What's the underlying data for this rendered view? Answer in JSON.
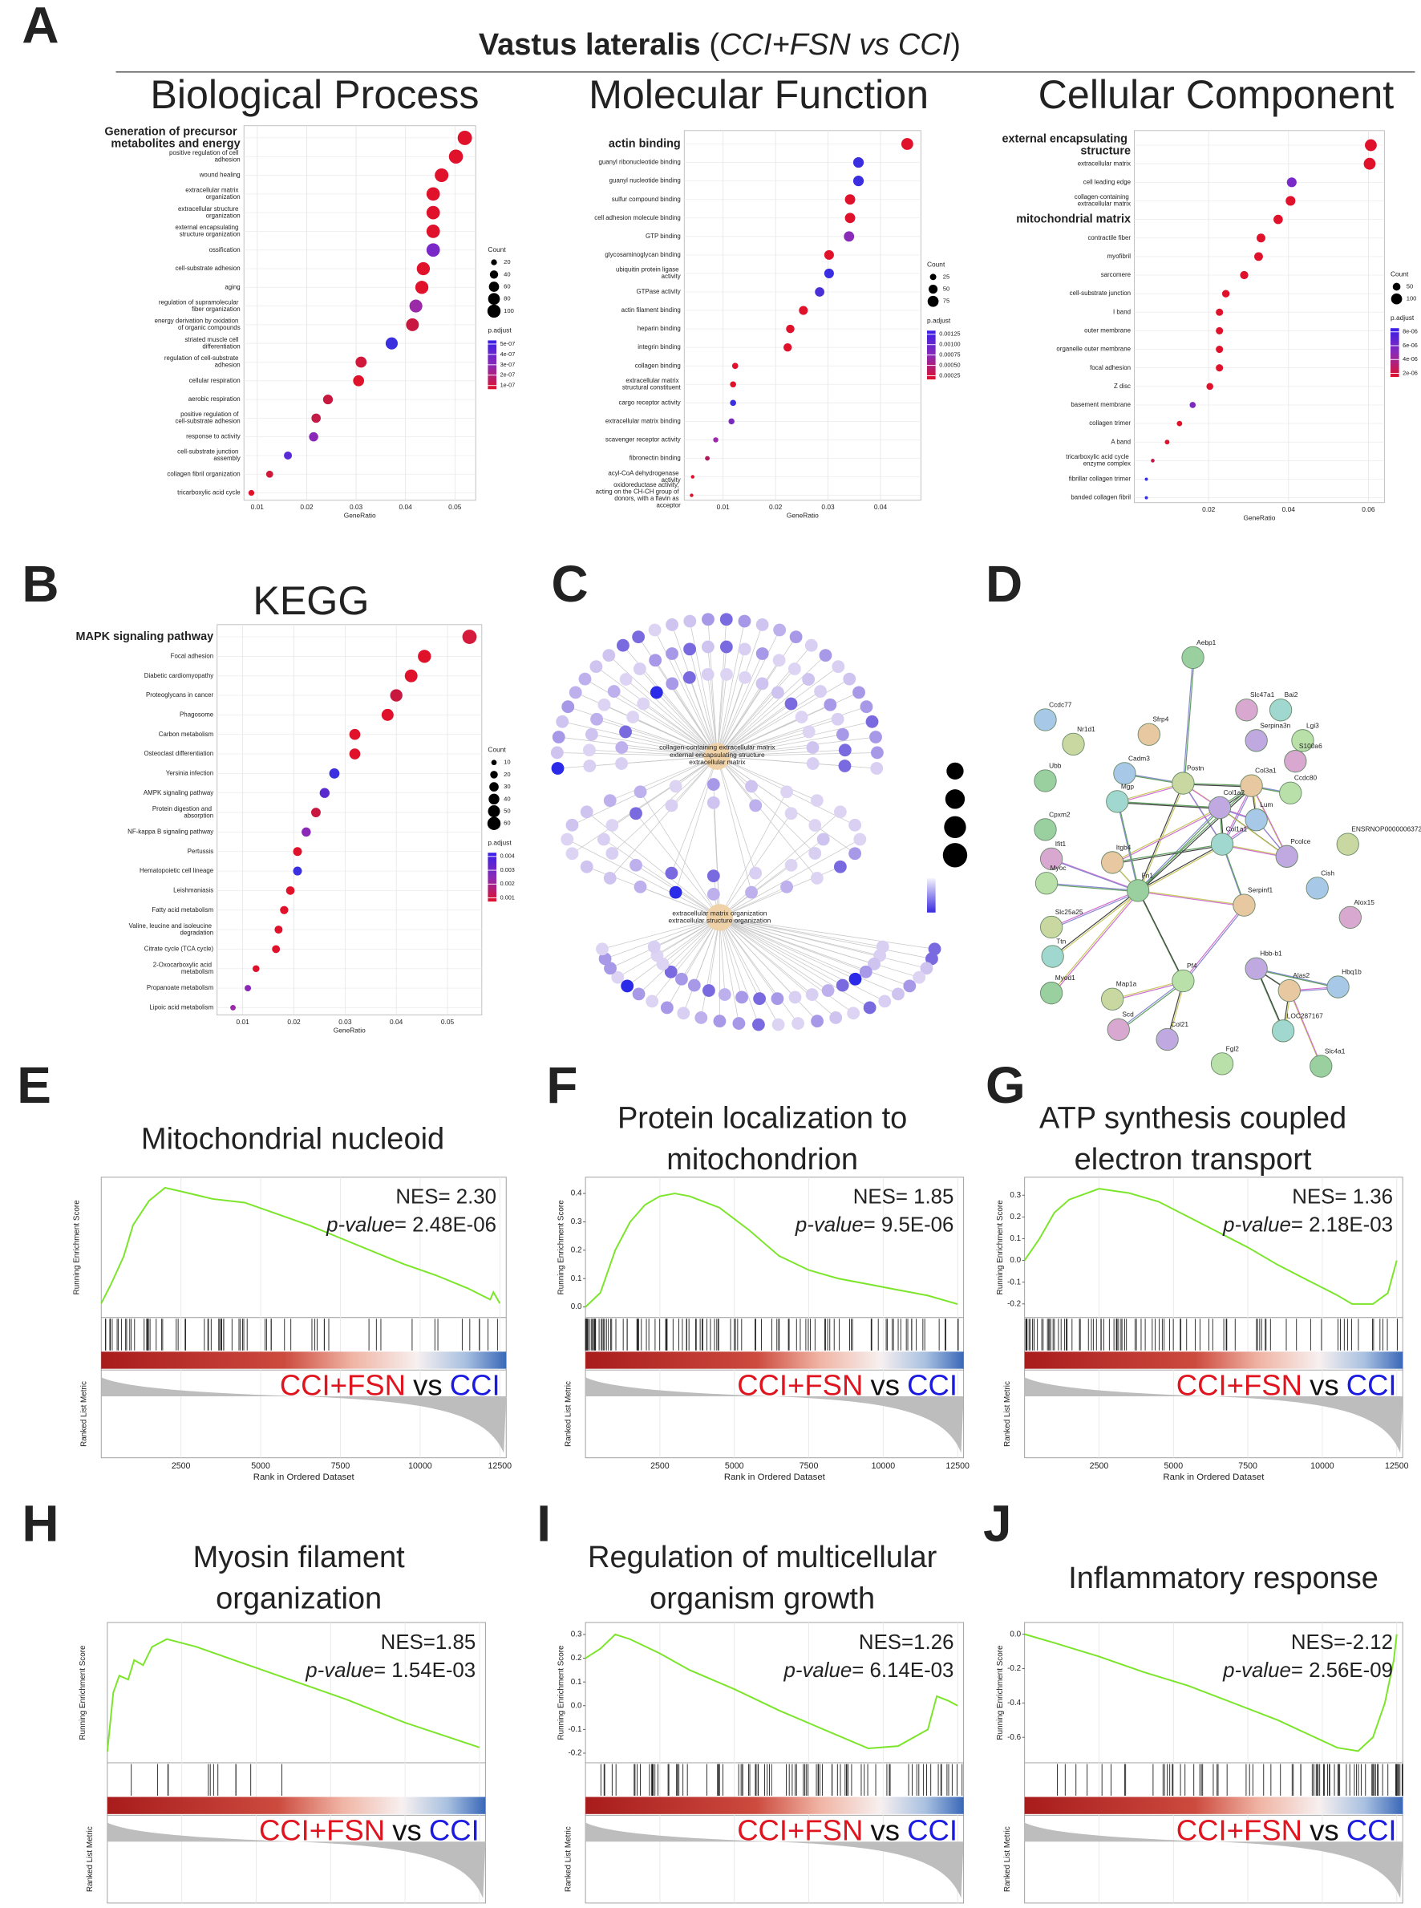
{
  "figure": {
    "title_bold": "Vastus lateralis",
    "title_open": "(",
    "title_italic": "CCI+FSN vs CCI",
    "title_close": ")"
  },
  "panel_letters": [
    "A",
    "B",
    "C",
    "D",
    "E",
    "F",
    "G",
    "H",
    "I",
    "J"
  ],
  "chart_data": [
    {
      "type": "dot",
      "title": "Biological Process",
      "xlabel": "GeneRatio",
      "categories": [
        "Generation of precursor metabolites and energy",
        "positive regulation of cell adhesion",
        "wound healing",
        "extracellular matrix organization",
        "extracellular structure organization",
        "external encapsulating structure organization",
        "ossification",
        "cell-substrate adhesion",
        "aging",
        "regulation of supramolecular fiber organization",
        "energy derivation by oxidation of organic compounds",
        "striated muscle cell differentiation",
        "regulation of cell-substrate adhesion",
        "cellular respiration",
        "aerobic respiration",
        "positive regulation of cell-substrate adhesion",
        "response to activity",
        "cell-substrate junction assembly",
        "collagen fibril organization",
        "tricarboxylic acid cycle"
      ],
      "values": [
        0.052,
        0.0502,
        0.0473,
        0.0456,
        0.0456,
        0.0456,
        0.0456,
        0.0436,
        0.0433,
        0.0421,
        0.0414,
        0.0372,
        0.031,
        0.0305,
        0.0243,
        0.0219,
        0.0214,
        0.0162,
        0.0125,
        0.0088
      ],
      "colors": [
        "#e0112b",
        "#e0112b",
        "#e0112b",
        "#e0112b",
        "#e0112b",
        "#e0112b",
        "#7a28c8",
        "#e0112b",
        "#e0112b",
        "#9a2aa8",
        "#c8183f",
        "#3a30e0",
        "#d0183a",
        "#e0112b",
        "#c8183f",
        "#c41a48",
        "#8a28b8",
        "#5a2ad8",
        "#d0183a",
        "#e0112b"
      ],
      "highlight": [
        0
      ],
      "xlim": [
        0.0073,
        0.0542
      ],
      "xticks": [
        0.01,
        0.02,
        0.03,
        0.04,
        0.05
      ],
      "size_legend": {
        "title": "Count",
        "values": [
          20,
          40,
          60,
          80,
          100
        ]
      },
      "color_legend": {
        "title": "p.adjust",
        "colors": [
          "#3a1fe8",
          "#8a2ab8",
          "#e0112b"
        ],
        "ticks": [
          {
            "value": 5e-07,
            "label": "5e-07"
          },
          {
            "value": 4e-07,
            "label": "4e-07"
          },
          {
            "value": 3e-07,
            "label": "3e-07"
          },
          {
            "value": 2e-07,
            "label": "2e-07"
          },
          {
            "value": 1e-07,
            "label": "1e-07"
          }
        ]
      }
    },
    {
      "type": "dot",
      "title": "Molecular Function",
      "xlabel": "GeneRatio",
      "categories": [
        "actin binding",
        "guanyl ribonucleotide binding",
        "guanyl nucleotide binding",
        "sulfur compound binding",
        "cell adhesion molecule binding",
        "GTP binding",
        "glycosaminoglycan binding",
        "ubiquitin protein ligase activity",
        "GTPase activity",
        "actin filament binding",
        "heparin binding",
        "integrin binding",
        "collagen binding",
        "extracellular matrix structural constituent",
        "cargo receptor activity",
        "extracellular matrix binding",
        "scavenger receptor activity",
        "fibronectin binding",
        "acyl-CoA dehydrogenase activity",
        "oxidoreductase activity, acting on the CH-CH group of donors, with a flavin as acceptor"
      ],
      "values": [
        0.0451,
        0.0358,
        0.0358,
        0.0342,
        0.0342,
        0.034,
        0.0302,
        0.0302,
        0.0284,
        0.0253,
        0.0228,
        0.0223,
        0.0123,
        0.0119,
        0.0119,
        0.0116,
        0.0086,
        0.007,
        0.0042,
        0.004
      ],
      "colors": [
        "#e0112b",
        "#3a2ee0",
        "#3a2ee0",
        "#e0112b",
        "#e0112b",
        "#8a2ab8",
        "#e0112b",
        "#3a2ee0",
        "#4a2ed8",
        "#e0112b",
        "#e0112b",
        "#e0112b",
        "#e0112b",
        "#e0112b",
        "#3a30e0",
        "#7a2ac0",
        "#9a2aa8",
        "#b01a58",
        "#e0112b",
        "#e0112b"
      ],
      "highlight": [
        0
      ],
      "xlim": [
        0.0026,
        0.0477
      ],
      "xticks": [
        0.01,
        0.02,
        0.03,
        0.04
      ],
      "size_legend": {
        "title": "Count",
        "values": [
          25,
          50,
          75
        ]
      },
      "color_legend": {
        "title": "p.adjust",
        "colors": [
          "#3a1fe8",
          "#8a2ab8",
          "#e0112b"
        ],
        "ticks": [
          0.00125,
          {
            "value": 0.001,
            "label": "0.00100"
          },
          0.00075,
          {
            "value": 0.0005,
            "label": "0.00050"
          },
          0.00025
        ]
      }
    },
    {
      "type": "dot",
      "title": "Cellular Component",
      "xlabel": "GeneRatio",
      "categories": [
        "external encapsulating structure",
        "extracellular matrix",
        "cell leading edge",
        "collagen-containing extracellular matrix",
        "mitochondrial matrix",
        "contractile fiber",
        "myofibril",
        "sarcomere",
        "cell-substrate junction",
        "I band",
        "outer membrane",
        "organelle outer membrane",
        "focal adhesion",
        "Z disc",
        "basement membrane",
        "collagen trimer",
        "A band",
        "tricarboxylic acid cycle enzyme complex",
        "fibrillar collagen trimer",
        "banded collagen fibril"
      ],
      "values": [
        0.0606,
        0.0603,
        0.0408,
        0.0405,
        0.0374,
        0.0331,
        0.0325,
        0.0289,
        0.0243,
        0.0227,
        0.0227,
        0.0227,
        0.0227,
        0.0203,
        0.016,
        0.0127,
        0.0096,
        0.006,
        0.0044,
        0.0044
      ],
      "colors": [
        "#e0112b",
        "#e0112b",
        "#7a2ac8",
        "#e0112b",
        "#e0112b",
        "#e0112b",
        "#e0112b",
        "#e0112b",
        "#e0112b",
        "#e0112b",
        "#e0112b",
        "#e0112b",
        "#e0112b",
        "#e0112b",
        "#7a2ac0",
        "#e0112b",
        "#e0112b",
        "#c0184a",
        "#3a30e0",
        "#3a30e0"
      ],
      "highlight": [
        0,
        4
      ],
      "xlim": [
        0.0014,
        0.064
      ],
      "xticks": [
        0.02,
        0.04,
        0.06
      ],
      "size_legend": {
        "title": "Count",
        "values": [
          50,
          100
        ]
      },
      "color_legend": {
        "title": "p.adjust",
        "colors": [
          "#3a1fe8",
          "#8a2ab8",
          "#e0112b"
        ],
        "ticks": [
          {
            "value": 8e-06,
            "label": "8e-06"
          },
          {
            "value": 6e-06,
            "label": "6e-06"
          },
          {
            "value": 4e-06,
            "label": "4e-06"
          },
          {
            "value": 2e-06,
            "label": "2e-06"
          }
        ]
      }
    },
    {
      "type": "dot",
      "title": "KEGG",
      "xlabel": "GeneRatio",
      "categories": [
        "MAPK signaling pathway",
        "Focal adhesion",
        "Diabetic cardiomyopathy",
        "Proteoglycans in cancer",
        "Phagosome",
        "Carbon metabolism",
        "Osteoclast differentiation",
        "Yersinia infection",
        "AMPK signaling pathway",
        "Protein digestion and absorption",
        "NF-kappa B signaling pathway",
        "Pertussis",
        "Hematopoietic cell lineage",
        "Leishmaniasis",
        "Fatty acid metabolism",
        "Valine, leucine and isoleucine degradation",
        "Citrate cycle (TCA cycle)",
        "2-Oxocarboxylic acid metabolism",
        "Propanoate metabolism",
        "Lipoic acid metabolism"
      ],
      "values": [
        0.0543,
        0.0455,
        0.0429,
        0.04,
        0.0383,
        0.0319,
        0.0319,
        0.0279,
        0.026,
        0.0243,
        0.0224,
        0.0207,
        0.0207,
        0.0193,
        0.0181,
        0.017,
        0.0165,
        0.0126,
        0.011,
        0.0081
      ],
      "colors": [
        "#d61a3c",
        "#e0112b",
        "#e0112b",
        "#c8183f",
        "#e0112b",
        "#e0112b",
        "#e0112b",
        "#3a30e0",
        "#5a2cd0",
        "#c8183f",
        "#8a28b8",
        "#e0112b",
        "#3a30e0",
        "#e0112b",
        "#e0112b",
        "#e0112b",
        "#e0112b",
        "#e0112b",
        "#8a28b8",
        "#9a2aa8"
      ],
      "highlight": [
        0
      ],
      "xlim": [
        0.005,
        0.0567
      ],
      "xticks": [
        0.01,
        0.02,
        0.03,
        0.04,
        0.05
      ],
      "size_legend": {
        "title": "Count",
        "values": [
          10,
          20,
          30,
          40,
          50,
          60
        ]
      },
      "color_legend": {
        "title": "p.adjust",
        "colors": [
          "#3a1fe8",
          "#8a2ab8",
          "#e0112b"
        ],
        "ticks": [
          0.004,
          0.003,
          0.002,
          0.001
        ]
      }
    },
    {
      "type": "gsea",
      "title_lines": [
        "Mitochondrial nucleoid"
      ],
      "nes_text": "NES= 2.30",
      "p_italic": "p-value",
      "p_text": "= 2.48E-06",
      "ylabel": "Running Enrichment Score",
      "metric_label": "Ranked List Metric",
      "xlabel": "Rank in Ordered Dataset",
      "group_a": "CCI+FSN",
      "vs": "vs",
      "group_b": "CCI",
      "color": "#7be52a",
      "x": [
        0,
        300,
        700,
        1000,
        1500,
        2000,
        2500,
        3500,
        4500,
        5500,
        6500,
        7500,
        8500,
        9500,
        10500,
        11500,
        12200,
        12300,
        12500
      ],
      "values": [
        0,
        0.1,
        0.25,
        0.42,
        0.55,
        0.62,
        0.6,
        0.56,
        0.54,
        0.48,
        0.42,
        0.35,
        0.28,
        0.21,
        0.15,
        0.08,
        0.02,
        0.06,
        0.0
      ],
      "xlim": [
        0,
        12700
      ],
      "xticks": [
        2500,
        5000,
        7500,
        10000,
        12500
      ],
      "ylim": [
        -0.05,
        0.65
      ]
    },
    {
      "type": "gsea",
      "title_lines": [
        "Protein localization to",
        "mitochondrion"
      ],
      "nes_text": "NES= 1.85",
      "p_italic": "p-value",
      "p_text": "= 9.5E-06",
      "ylabel": "Running Enrichment Score",
      "metric_label": "Ranked List Metric",
      "xlabel": "Rank in Ordered Dataset",
      "group_a": "CCI+FSN",
      "vs": "vs",
      "group_b": "CCI",
      "color": "#7be52a",
      "x": [
        0,
        500,
        1000,
        1500,
        2000,
        2500,
        3000,
        3500,
        4500,
        5500,
        6500,
        7500,
        8500,
        9500,
        10500,
        11500,
        12500
      ],
      "values": [
        0,
        0.05,
        0.2,
        0.3,
        0.36,
        0.39,
        0.4,
        0.39,
        0.35,
        0.27,
        0.18,
        0.13,
        0.1,
        0.08,
        0.06,
        0.04,
        0.01
      ],
      "xlim": [
        0,
        12700
      ],
      "xticks": [
        2500,
        5000,
        7500,
        10000,
        12500
      ],
      "ylim": [
        -0.02,
        0.44
      ],
      "yticks": [
        {
          "value": 0,
          "label": "0.0"
        },
        0.1,
        0.2,
        0.3,
        0.4
      ]
    },
    {
      "type": "gsea",
      "title_lines": [
        "ATP synthesis coupled",
        "electron transport"
      ],
      "nes_text": "NES= 1.36",
      "p_italic": "p-value",
      "p_text": "= 2.18E-03",
      "ylabel": "Running Enrichment Score",
      "metric_label": "Ranked List Metric",
      "xlabel": "Rank in Ordered Dataset",
      "group_a": "CCI+FSN",
      "vs": "vs",
      "group_b": "CCI",
      "color": "#7be52a",
      "x": [
        0,
        500,
        1000,
        1500,
        2500,
        3500,
        4500,
        5500,
        6500,
        7500,
        8500,
        9500,
        10500,
        11000,
        11700,
        12200,
        12500
      ],
      "values": [
        0,
        0.1,
        0.22,
        0.28,
        0.33,
        0.31,
        0.27,
        0.2,
        0.13,
        0.06,
        -0.02,
        -0.09,
        -0.16,
        -0.2,
        -0.2,
        -0.15,
        0.0
      ],
      "xlim": [
        0,
        12700
      ],
      "xticks": [
        2500,
        5000,
        7500,
        10000,
        12500
      ],
      "ylim": [
        -0.24,
        0.36
      ],
      "yticks": [
        -0.2,
        -0.1,
        {
          "value": 0,
          "label": "0.0"
        },
        0.1,
        0.2,
        0.3
      ]
    },
    {
      "type": "gsea",
      "title_lines": [
        "Myosin filament",
        "organization"
      ],
      "nes_text": "NES=1.85",
      "p_italic": "p-value",
      "p_text": "= 1.54E-03",
      "ylabel": "Running Enrichment Score",
      "metric_label": "Ranked List Metric",
      "xlabel": "Rank in Ordered Dataset",
      "group_a": "CCI+FSN",
      "vs": "vs",
      "group_b": "CCI",
      "color": "#7be52a",
      "x": [
        0,
        200,
        400,
        700,
        900,
        1200,
        1500,
        2000,
        3000,
        4000,
        6000,
        8000,
        10000,
        12500
      ],
      "values": [
        0,
        0.45,
        0.58,
        0.55,
        0.7,
        0.66,
        0.8,
        0.86,
        0.8,
        0.72,
        0.56,
        0.4,
        0.22,
        0.03
      ],
      "xlim": [
        0,
        12700
      ],
      "xticks": [
        2500,
        5000,
        7500,
        10000,
        12500
      ],
      "ylim": [
        -0.05,
        0.95
      ]
    },
    {
      "type": "gsea",
      "title_lines": [
        "Regulation of multicellular",
        "organism growth"
      ],
      "nes_text": "NES=1.26",
      "p_italic": "p-value",
      "p_text": "= 6.14E-03",
      "ylabel": "Running Enrichment Score",
      "metric_label": "Ranked List Metric",
      "xlabel": "Rank in Ordered Dataset",
      "group_a": "CCI+FSN",
      "vs": "vs",
      "group_b": "CCI",
      "color": "#7be52a",
      "x": [
        0,
        500,
        1000,
        1500,
        2500,
        3500,
        5000,
        6500,
        8000,
        9500,
        10500,
        11500,
        11800,
        12200,
        12500
      ],
      "values": [
        0.2,
        0.24,
        0.3,
        0.28,
        0.22,
        0.15,
        0.07,
        -0.02,
        -0.1,
        -0.18,
        -0.17,
        -0.1,
        0.04,
        0.02,
        0.0
      ],
      "xlim": [
        0,
        12700
      ],
      "xticks": [
        2500,
        5000,
        7500,
        10000,
        12500
      ],
      "ylim": [
        -0.22,
        0.33
      ],
      "yticks": [
        -0.2,
        -0.1,
        {
          "value": 0,
          "label": "0.0"
        },
        0.1,
        0.2,
        0.3
      ]
    },
    {
      "type": "gsea",
      "title_lines": [
        "Inflammatory response"
      ],
      "nes_text": "NES=-2.12",
      "p_italic": "p-value",
      "p_text": "= 2.56E-09",
      "ylabel": "Running Enrichment Score",
      "metric_label": "Ranked List Metric",
      "xlabel": "Rank in Ordered Dataset",
      "group_a": "CCI+FSN",
      "vs": "vs",
      "group_b": "CCI",
      "color": "#7be52a",
      "x": [
        0,
        1000,
        2500,
        4000,
        5500,
        7000,
        8500,
        9500,
        10500,
        11200,
        11700,
        12100,
        12400,
        12500
      ],
      "values": [
        0,
        -0.05,
        -0.13,
        -0.22,
        -0.3,
        -0.4,
        -0.5,
        -0.58,
        -0.66,
        -0.68,
        -0.6,
        -0.4,
        -0.15,
        0.0
      ],
      "xlim": [
        0,
        12700
      ],
      "xticks": [
        2500,
        5000,
        7500,
        10000,
        12500
      ],
      "ylim": [
        -0.72,
        0.04
      ],
      "yticks": [
        -0.6,
        -0.4,
        -0.2,
        {
          "value": 0,
          "label": "0.0"
        }
      ]
    }
  ],
  "network_c": {
    "hub_top": [
      "collagen-containing extracellular matrix",
      "external encapsulating structure",
      "extracellular matrix"
    ],
    "hub_bottom": [
      "extracellular matrix organization",
      "extracellular structure organization"
    ]
  },
  "network_d": {
    "nodes": [
      "Aebp1",
      "Ccdc77",
      "Nr1d1",
      "Sfrp4",
      "Slc47a1",
      "Bai2",
      "Serpina3n",
      "Lgi3",
      "Ubb",
      "Cadm3",
      "Postn",
      "Col3a1",
      "S100a6",
      "Mgp",
      "Col1a2",
      "Ccdc80",
      "Cpxm2",
      "Lum",
      "ENSRNOP00000063726",
      "Itgb4",
      "Ifit1",
      "Col1a1",
      "Pcolce",
      "Myoc",
      "Fn1",
      "Cish",
      "Slc25a25",
      "Serpinf1",
      "Alox15",
      "Ttn",
      "Hbb-b1",
      "Pf4",
      "Myod1",
      "Hbq1b",
      "Map1a",
      "Alas2",
      "Scd",
      "LOC287167",
      "Col21",
      "Fgl2",
      "Slc4a1"
    ]
  }
}
